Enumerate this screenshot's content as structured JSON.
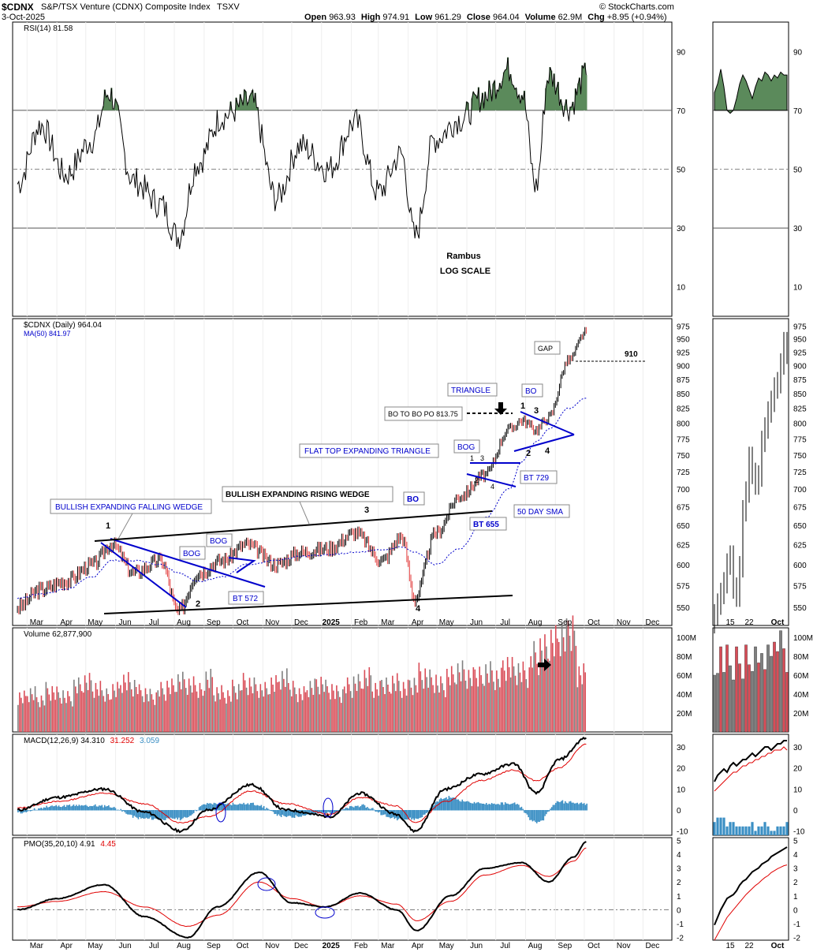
{
  "header": {
    "symbol": "$CDNX",
    "name": "S&P/TSX Venture (CDNX) Composite Index",
    "exchange": "TSXV",
    "date": "3-Oct-2025",
    "open_label": "Open",
    "open": "963.93",
    "high_label": "High",
    "high": "974.91",
    "low_label": "Low",
    "low": "961.29",
    "close_label": "Close",
    "close": "964.04",
    "volume_label": "Volume",
    "volume": "62.9M",
    "chg_label": "Chg",
    "chg": "+8.95 (+0.94%)",
    "watermark": "© StockCharts.com"
  },
  "annotations": {
    "author": "Rambus",
    "scale": "LOG SCALE",
    "p1": "1",
    "p2": "2",
    "p3": "3",
    "p4": "4",
    "bewf": "BULLISH EXPANDING FALLING WEDGE",
    "berw": "BULLISH EXPANDING RISING WEDGE",
    "flat": "FLAT TOP EXPANDING TRIANGLE",
    "triangle": "TRIANGLE",
    "bog": "BOG",
    "bo": "BO",
    "bt572": "BT 572",
    "bt655": "BT 655",
    "bt729": "BT 729",
    "sma50": "50 DAY SMA",
    "gap": "GAP",
    "gap_level": "910",
    "bopo": "BO TO BO PO 813.75",
    "t1": "1",
    "t2": "2",
    "t3": "3",
    "t4": "4"
  },
  "chart_data": [
    {
      "panel": "RSI",
      "type": "line",
      "legend": "RSI(14) 81.58",
      "ylim": [
        0,
        100
      ],
      "yticks": [
        "90",
        "70",
        "50",
        "30",
        "10"
      ],
      "reference_lines": [
        70,
        50,
        30
      ],
      "x": [
        "2024-02-20",
        "2024-03-15",
        "2024-04-10",
        "2024-05-08",
        "2024-05-25",
        "2024-06-20",
        "2024-07-18",
        "2024-08-05",
        "2024-08-25",
        "2024-09-20",
        "2024-10-20",
        "2024-11-15",
        "2024-12-10",
        "2025-01-08",
        "2025-02-05",
        "2025-03-01",
        "2025-03-25",
        "2025-04-08",
        "2025-04-28",
        "2025-05-25",
        "2025-06-20",
        "2025-07-15",
        "2025-07-28",
        "2025-08-12",
        "2025-08-25",
        "2025-09-15",
        "2025-10-03"
      ],
      "values": [
        45,
        65,
        48,
        60,
        76,
        46,
        38,
        27,
        52,
        68,
        73,
        40,
        58,
        50,
        66,
        42,
        55,
        27,
        60,
        67,
        75,
        84,
        76,
        44,
        82,
        71,
        82
      ]
    },
    {
      "panel": "price",
      "type": "candlestick",
      "legend": "$CDNX (Daily) 964.04",
      "ma_legend": "MA(50) 841.97",
      "scale": "log",
      "ylim": [
        530,
        990
      ],
      "yticks": [
        "975",
        "950",
        "925",
        "900",
        "875",
        "850",
        "825",
        "800",
        "775",
        "750",
        "725",
        "700",
        "675",
        "650",
        "625",
        "600",
        "575",
        "550"
      ],
      "x": [
        "2024-02-20",
        "2024-03-15",
        "2024-04-10",
        "2024-05-08",
        "2024-05-28",
        "2024-06-20",
        "2024-07-18",
        "2024-08-05",
        "2024-08-26",
        "2024-09-20",
        "2024-10-15",
        "2024-11-15",
        "2024-12-10",
        "2025-01-08",
        "2025-02-05",
        "2025-03-05",
        "2025-03-25",
        "2025-04-08",
        "2025-04-30",
        "2025-05-25",
        "2025-06-20",
        "2025-07-15",
        "2025-07-28",
        "2025-08-12",
        "2025-08-25",
        "2025-09-15",
        "2025-10-03"
      ],
      "close": [
        550,
        570,
        580,
        600,
        625,
        590,
        605,
        545,
        590,
        605,
        625,
        600,
        615,
        620,
        640,
        605,
        635,
        560,
        640,
        690,
        720,
        790,
        805,
        790,
        810,
        910,
        964
      ],
      "ma50": [
        560,
        565,
        570,
        585,
        605,
        605,
        600,
        590,
        580,
        585,
        600,
        605,
        610,
        612,
        615,
        618,
        622,
        615,
        600,
        620,
        660,
        700,
        740,
        770,
        790,
        825,
        842
      ],
      "gap_level": 910
    },
    {
      "panel": "volume",
      "type": "bar",
      "legend": "Volume 62,877,900",
      "ylim": [
        0,
        110
      ],
      "yticks": [
        "100M",
        "80M",
        "60M",
        "40M",
        "20M"
      ],
      "x_start": "2024-02-20",
      "x_end": "2025-10-03",
      "values_millions": [
        38,
        42,
        35,
        44,
        40,
        36,
        48,
        52,
        45,
        40,
        46,
        55,
        50,
        42,
        38,
        44,
        47,
        53,
        49,
        45,
        58,
        43,
        40,
        46,
        52,
        48,
        44,
        50,
        56,
        47,
        42,
        49,
        53,
        46,
        41,
        48,
        51,
        57,
        45,
        50,
        54,
        48,
        52,
        61,
        55,
        49,
        58,
        63,
        57,
        60,
        65,
        59,
        72,
        66,
        62,
        80,
        86,
        94,
        100,
        107,
        63
      ]
    },
    {
      "panel": "MACD",
      "type": "line",
      "legend": [
        "MACD(12,26,9) 34.310",
        "31.252",
        "3.059"
      ],
      "ylim": [
        -12,
        36
      ],
      "yticks": [
        "30",
        "20",
        "10",
        "0",
        "-10"
      ],
      "x": [
        "2024-02-20",
        "2024-04-01",
        "2024-05-20",
        "2024-07-01",
        "2024-08-08",
        "2024-09-05",
        "2024-10-20",
        "2024-11-25",
        "2025-01-10",
        "2025-02-10",
        "2025-03-20",
        "2025-04-08",
        "2025-05-10",
        "2025-06-15",
        "2025-07-20",
        "2025-08-12",
        "2025-09-05",
        "2025-10-03"
      ],
      "macd": [
        0,
        6,
        10,
        -1,
        -10,
        0,
        12,
        0,
        -3,
        8,
        -2,
        -10,
        10,
        17,
        22,
        8,
        24,
        34.31
      ],
      "signal": [
        1,
        4,
        8,
        3,
        -6,
        -3,
        9,
        3,
        -2,
        6,
        2,
        -6,
        4,
        14,
        19,
        14,
        20,
        31.25
      ]
    },
    {
      "panel": "PMO",
      "type": "line",
      "legend": [
        "PMO(35,20,10) 4.91",
        "4.45"
      ],
      "ylim": [
        -2.2,
        5.2
      ],
      "yticks": [
        "5",
        "4",
        "3",
        "2",
        "1",
        "0",
        "-1",
        "-2"
      ],
      "x": [
        "2024-02-20",
        "2024-04-01",
        "2024-05-20",
        "2024-07-01",
        "2024-08-15",
        "2024-09-15",
        "2024-10-28",
        "2024-12-01",
        "2025-01-05",
        "2025-02-10",
        "2025-03-20",
        "2025-04-10",
        "2025-05-15",
        "2025-06-20",
        "2025-07-28",
        "2025-08-25",
        "2025-09-20",
        "2025-10-03"
      ],
      "pmo": [
        0,
        0.8,
        1.8,
        -0.5,
        -2.0,
        0.2,
        2.7,
        0.5,
        0.2,
        1.2,
        0.0,
        -1.5,
        1.0,
        3.0,
        3.4,
        2.0,
        3.8,
        4.91
      ],
      "signal": [
        0.2,
        0.6,
        1.3,
        0.2,
        -1.2,
        -0.4,
        2.0,
        0.8,
        0.2,
        1.0,
        0.4,
        -0.8,
        0.6,
        2.5,
        3.2,
        2.4,
        3.5,
        4.45
      ]
    },
    {
      "panel": "x_axis",
      "type": "table",
      "months": [
        "Mar",
        "Apr",
        "May",
        "Jun",
        "Jul",
        "Aug",
        "Sep",
        "Oct",
        "Nov",
        "Dec",
        "2025",
        "Feb",
        "Mar",
        "Apr",
        "May",
        "Jun",
        "Jul",
        "Aug",
        "Sep",
        "Oct",
        "Nov",
        "Dec"
      ],
      "side_ticks": [
        "15",
        "22",
        "Oct"
      ]
    }
  ],
  "colors": {
    "up": "#000000",
    "down": "#e23b3b",
    "ma": "#0000cc",
    "signal": "#e00000",
    "hist": "#3b8fc4",
    "rsi_fill": "#5b8a5b",
    "vol_up": "#7f7f7f",
    "vol_down": "#d94c57",
    "annot": "#0000cc"
  }
}
